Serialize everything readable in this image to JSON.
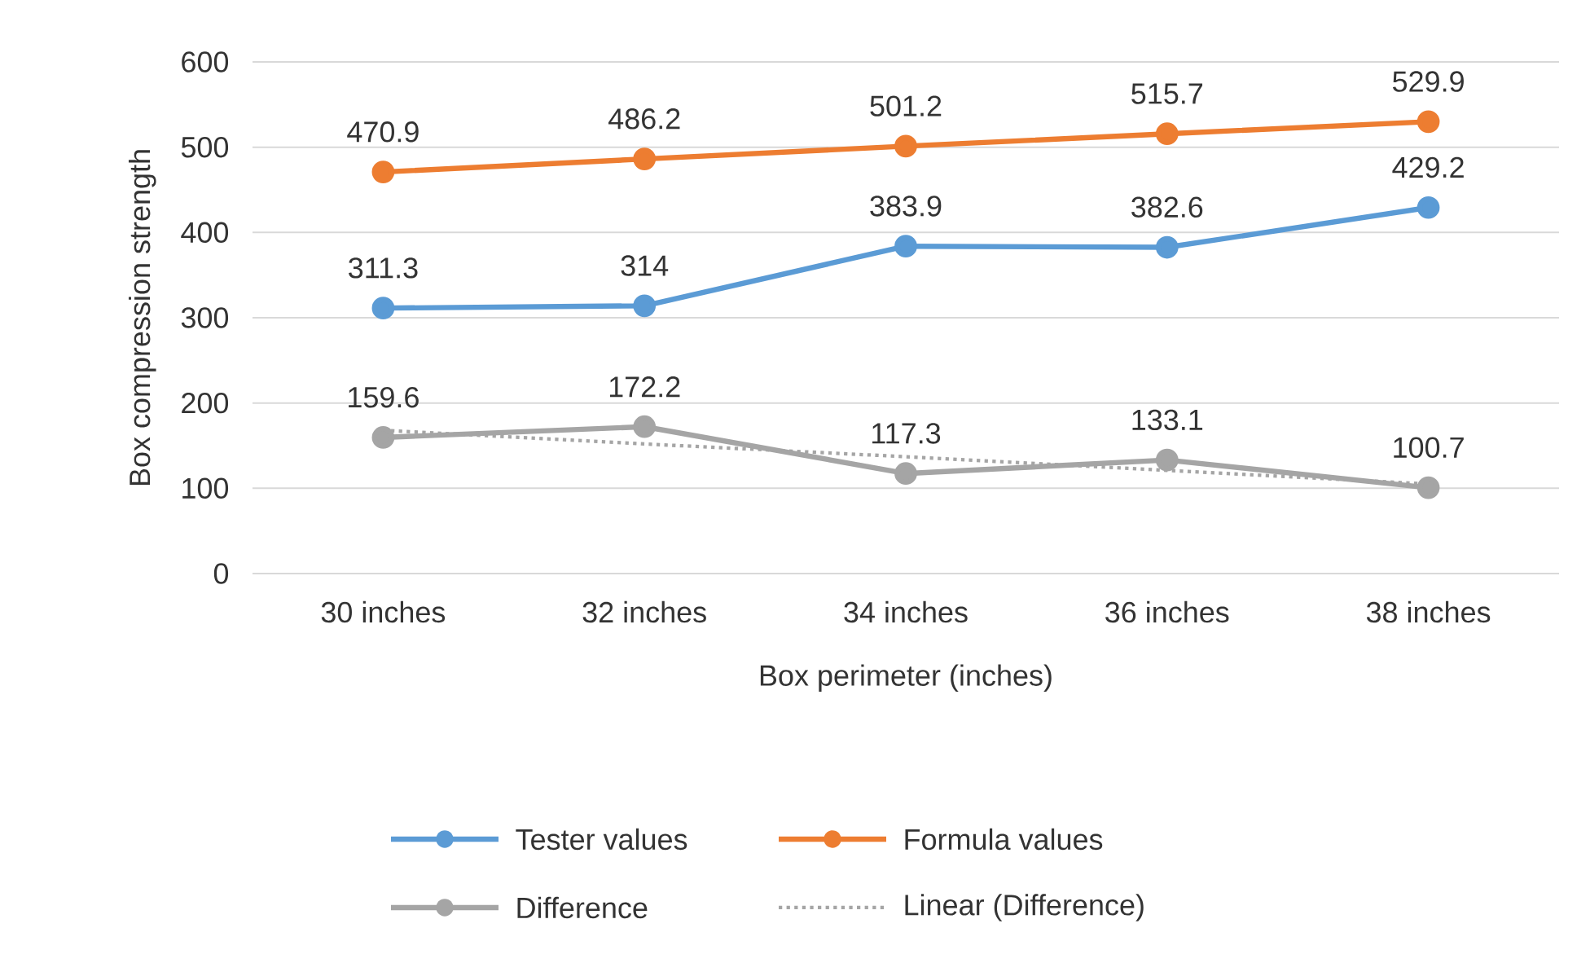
{
  "chart_data": {
    "type": "line",
    "xlabel": "Box perimeter (inches)",
    "ylabel": "Box compression strength",
    "categories": [
      "30 inches",
      "32 inches",
      "34 inches",
      "36 inches",
      "38 inches"
    ],
    "series": [
      {
        "name": "Tester values",
        "color": "#5b9bd5",
        "values": [
          311.3,
          314,
          383.9,
          382.6,
          429.2
        ],
        "data_labels": true,
        "marker": "circle"
      },
      {
        "name": "Formula values",
        "color": "#ed7d31",
        "values": [
          470.9,
          486.2,
          501.2,
          515.7,
          529.9
        ],
        "data_labels": true,
        "marker": "circle"
      },
      {
        "name": "Difference",
        "color": "#a5a5a5",
        "values": [
          159.6,
          172.2,
          117.3,
          133.1,
          100.7
        ],
        "data_labels": true,
        "marker": "circle"
      },
      {
        "name": "Linear (Difference)",
        "color": "#a5a5a5",
        "values": [
          168,
          152,
          137,
          121,
          105
        ],
        "line_style": "dotted",
        "marker": "none"
      }
    ],
    "ylim": [
      0,
      600
    ],
    "yticks": [
      0,
      100,
      200,
      300,
      400,
      500,
      600
    ],
    "grid": "y",
    "legend": "bottom"
  }
}
